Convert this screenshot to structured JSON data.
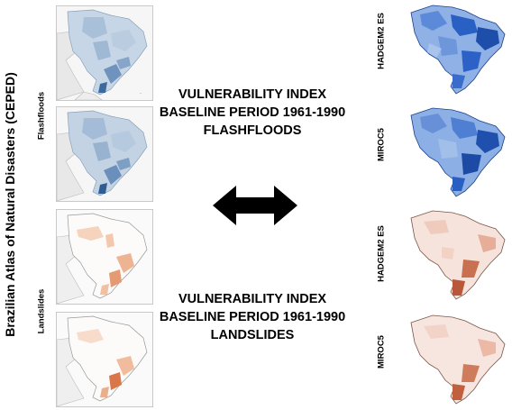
{
  "left_title": "Brazilian Atlas of Natural Disasters (CEPED)",
  "row_labels": {
    "flashfloods": "Flashfloods",
    "landslides": "Landslides"
  },
  "captions": {
    "top": {
      "line1": "VULNERABILITY INDEX",
      "line2": "BASELINE PERIOD 1961-1990",
      "line3": "FLASHFLOODS"
    },
    "bottom": {
      "line1": "VULNERABILITY INDEX",
      "line2": "BASELINE PERIOD 1961-1990",
      "line3": "LANDSLIDES"
    }
  },
  "right_labels": [
    "HADGEM2 ES",
    "MIROC5",
    "HADGEM2 ES",
    "MIROC5"
  ],
  "colors": {
    "flood_fill": "#b3c8de",
    "flood_dark": "#3d6a9c",
    "landslide_fill": "#f1c4a6",
    "landslide_dark": "#d9774a",
    "model_blue": "#2860c4",
    "model_red": "#b8573a"
  }
}
